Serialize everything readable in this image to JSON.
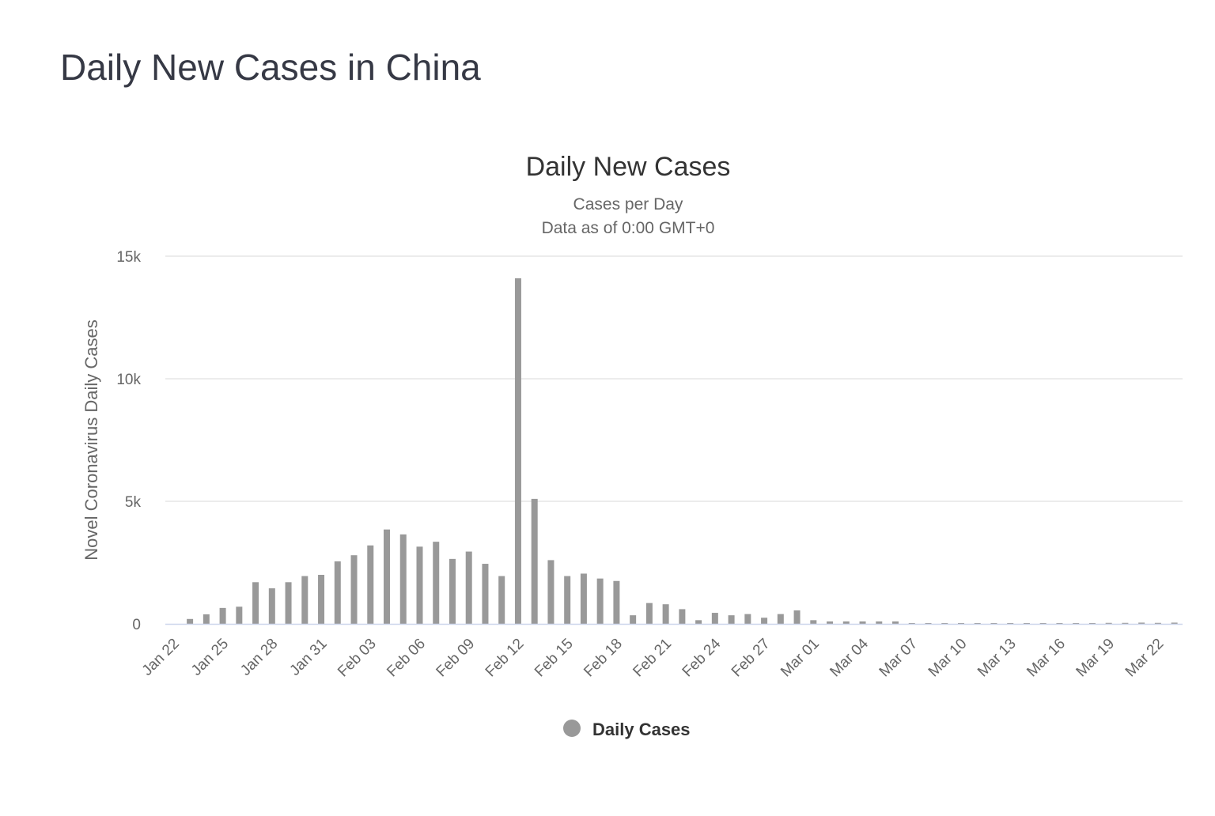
{
  "page": {
    "title": "Daily New Cases in China"
  },
  "chart_data": {
    "type": "bar",
    "title": "Daily New Cases",
    "subtitle_lines": [
      "Cases per Day",
      "Data as of 0:00 GMT+0"
    ],
    "ylabel": "Novel Coronavirus Daily Cases",
    "xlabel": "",
    "ylim": [
      0,
      15000
    ],
    "yticks": [
      0,
      5000,
      10000,
      15000
    ],
    "ytick_labels": [
      "0",
      "5k",
      "10k",
      "15k"
    ],
    "xtick_labels": [
      "Jan 22",
      "Jan 25",
      "Jan 28",
      "Jan 31",
      "Feb 03",
      "Feb 06",
      "Feb 09",
      "Feb 12",
      "Feb 15",
      "Feb 18",
      "Feb 21",
      "Feb 24",
      "Feb 27",
      "Mar 01",
      "Mar 04",
      "Mar 07",
      "Mar 10",
      "Mar 13",
      "Mar 16",
      "Mar 19",
      "Mar 22"
    ],
    "grid": true,
    "legend_position": "bottom-center",
    "bar_color": "#999999",
    "series": [
      {
        "name": "Daily Cases",
        "x": [
          "Jan 22",
          "Jan 23",
          "Jan 24",
          "Jan 25",
          "Jan 26",
          "Jan 27",
          "Jan 28",
          "Jan 29",
          "Jan 30",
          "Jan 31",
          "Feb 01",
          "Feb 02",
          "Feb 03",
          "Feb 04",
          "Feb 05",
          "Feb 06",
          "Feb 07",
          "Feb 08",
          "Feb 09",
          "Feb 10",
          "Feb 11",
          "Feb 12",
          "Feb 13",
          "Feb 14",
          "Feb 15",
          "Feb 16",
          "Feb 17",
          "Feb 18",
          "Feb 19",
          "Feb 20",
          "Feb 21",
          "Feb 22",
          "Feb 23",
          "Feb 24",
          "Feb 25",
          "Feb 26",
          "Feb 27",
          "Feb 28",
          "Feb 29",
          "Mar 01",
          "Mar 02",
          "Mar 03",
          "Mar 04",
          "Mar 05",
          "Mar 06",
          "Mar 07",
          "Mar 08",
          "Mar 09",
          "Mar 10",
          "Mar 11",
          "Mar 12",
          "Mar 13",
          "Mar 14",
          "Mar 15",
          "Mar 16",
          "Mar 17",
          "Mar 18",
          "Mar 19",
          "Mar 20",
          "Mar 21",
          "Mar 22",
          "Mar 23"
        ],
        "values": [
          0,
          200,
          390,
          650,
          700,
          1700,
          1450,
          1700,
          1950,
          2000,
          2550,
          2800,
          3200,
          3850,
          3650,
          3150,
          3350,
          2650,
          2950,
          2450,
          1950,
          14100,
          5100,
          2600,
          1950,
          2050,
          1850,
          1750,
          350,
          850,
          800,
          600,
          150,
          450,
          350,
          400,
          250,
          400,
          550,
          150,
          100,
          100,
          100,
          100,
          100,
          30,
          20,
          15,
          20,
          15,
          10,
          10,
          15,
          15,
          20,
          15,
          25,
          40,
          40,
          50,
          40,
          50
        ]
      }
    ]
  }
}
